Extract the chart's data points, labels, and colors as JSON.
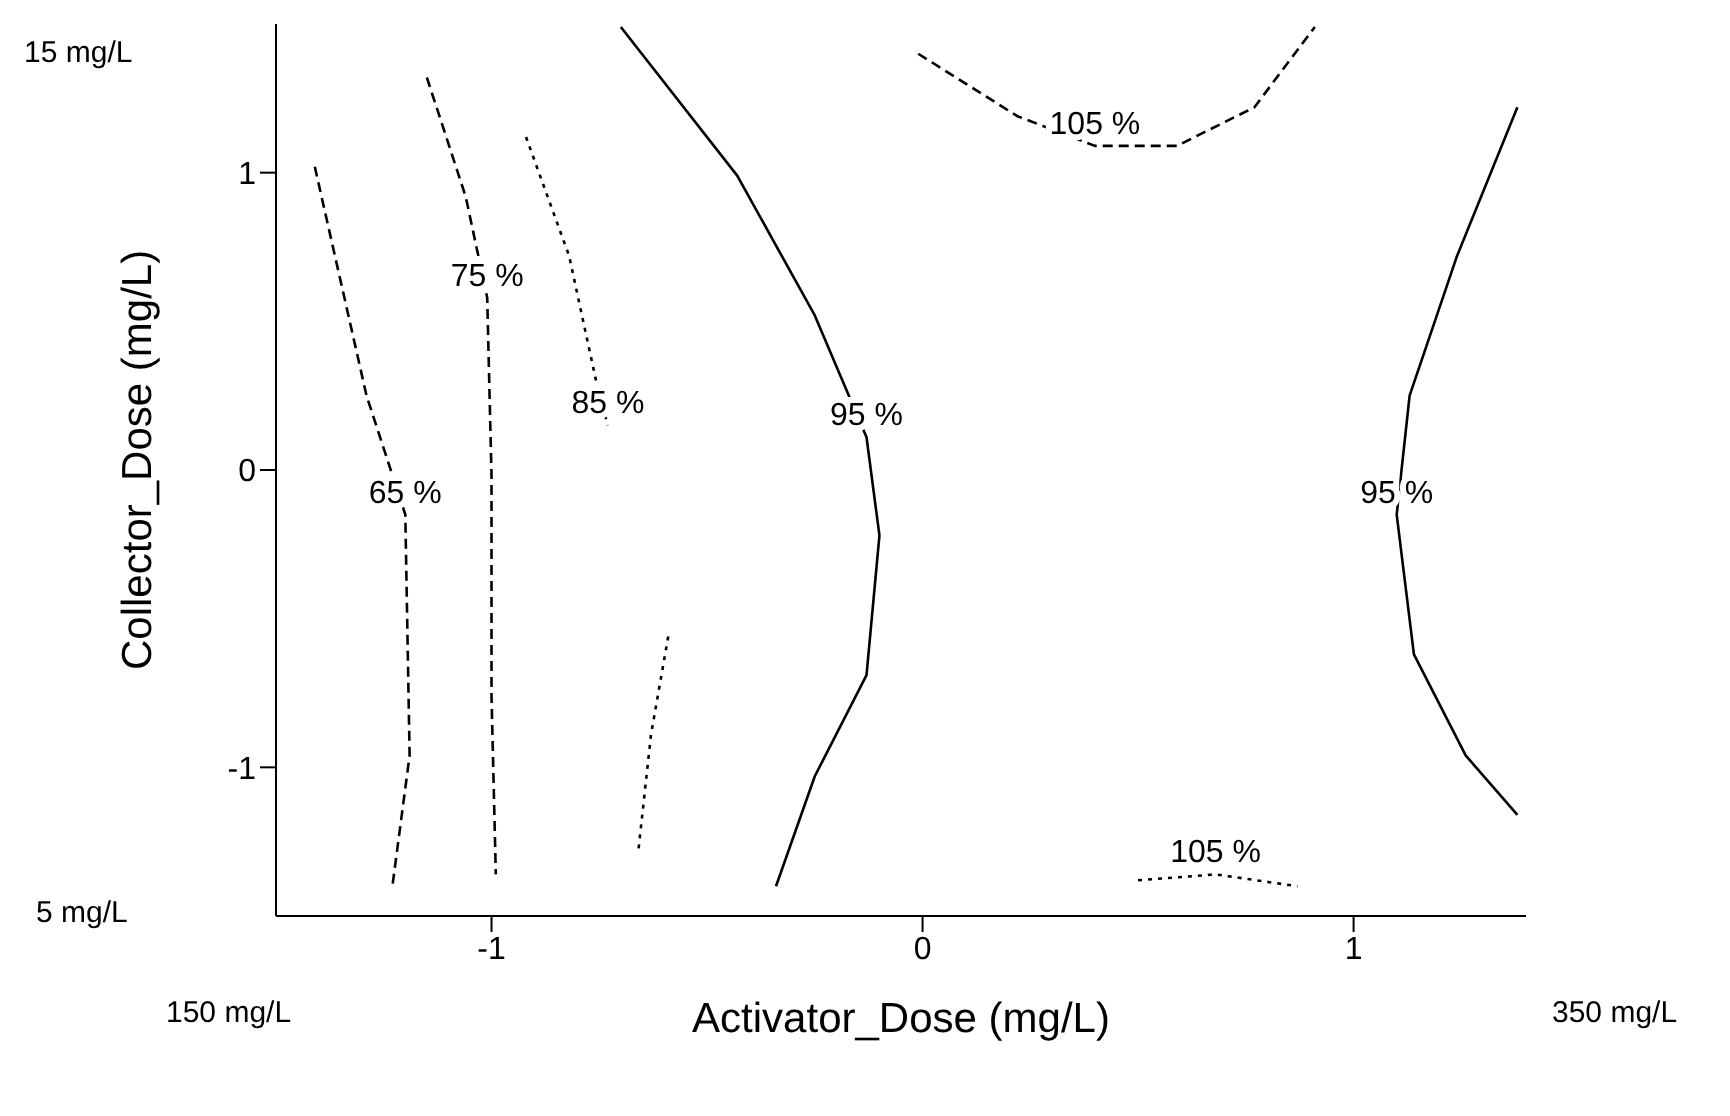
{
  "chart_data": {
    "type": "line",
    "xlabel": "Activator_Dose (mg/L)",
    "ylabel": "Collector_Dose (mg/L)",
    "xlim": [
      -1.5,
      1.4
    ],
    "xticks": [
      -1,
      0,
      1
    ],
    "ylim": [
      -1.5,
      1.5
    ],
    "yticks": [
      -1,
      0,
      1
    ],
    "grid": false,
    "legend": false,
    "marker": "none",
    "annotations": [
      "15 mg/L",
      "5 mg/L",
      "150 mg/L",
      "350 mg/L"
    ],
    "series": [
      {
        "name": "65 %",
        "color": "#000000",
        "line_style": "dashed",
        "x": [
          -1.41,
          -1.29,
          -1.2,
          -1.19,
          -1.23
        ],
        "values": [
          1.02,
          0.25,
          -0.15,
          -0.96,
          -1.4
        ]
      },
      {
        "name": "75 %",
        "color": "#000000",
        "line_style": "dashed",
        "x": [
          -1.15,
          -1.06,
          -1.01,
          -1.0,
          -1.0,
          -0.99
        ],
        "values": [
          1.32,
          0.92,
          0.58,
          -0.02,
          -0.76,
          -1.36
        ]
      },
      {
        "name": "85 %",
        "color": "#000000",
        "line_style": "dotted",
        "x": [
          -0.92,
          -0.82,
          -0.75,
          -0.73,
          -0.66,
          -0.59,
          -0.63,
          -0.66
        ],
        "values": [
          1.12,
          0.72,
          0.25,
          0.15,
          null,
          -0.56,
          -0.89,
          -1.29
        ]
      },
      {
        "name": "95 %",
        "color": "#000000",
        "line_style": "solid",
        "x": [
          -0.7,
          -0.43,
          -0.25,
          -0.13,
          -0.1,
          -0.13,
          -0.25,
          -0.34
        ],
        "values": [
          1.49,
          0.99,
          0.52,
          0.11,
          -0.22,
          -0.69,
          -1.03,
          -1.4
        ]
      },
      {
        "name": "95 %",
        "color": "#000000",
        "line_style": "solid",
        "x": [
          1.38,
          1.24,
          1.13,
          1.1,
          1.14,
          1.26,
          1.38
        ],
        "values": [
          1.22,
          0.72,
          0.25,
          -0.15,
          -0.62,
          -0.96,
          -1.16
        ]
      },
      {
        "name": "105 %",
        "color": "#000000",
        "line_style": "dashed",
        "x": [
          -0.01,
          0.22,
          0.4,
          0.59,
          0.77,
          0.91
        ],
        "values": [
          1.4,
          1.19,
          1.09,
          1.09,
          1.22,
          1.49
        ]
      },
      {
        "name": "105 %",
        "color": "#000000",
        "line_style": "dotted",
        "x": [
          0.5,
          0.68,
          0.87
        ],
        "values": [
          -1.38,
          -1.36,
          -1.4
        ]
      }
    ]
  }
}
